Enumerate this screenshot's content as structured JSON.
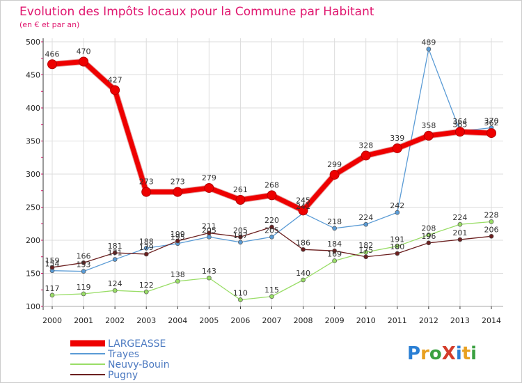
{
  "chart_data": {
    "type": "line",
    "title": "Evolution des Impôts locaux pour la Commune par Habitant",
    "subtitle": "(en € et par an)",
    "xlabel": "",
    "ylabel": "",
    "ylim": [
      100,
      500
    ],
    "yticks": [
      "100",
      "150",
      "200",
      "250",
      "300",
      "350",
      "400",
      "450",
      "500"
    ],
    "categories": [
      "2000",
      "2001",
      "2002",
      "2003",
      "2004",
      "2005",
      "2006",
      "2007",
      "2008",
      "2009",
      "2010",
      "2011",
      "2012",
      "2013",
      "2014"
    ],
    "series": [
      {
        "name": "LARGEASSE",
        "color": "#ee0000",
        "values": [
          466,
          470,
          427,
          273,
          273,
          279,
          261,
          268,
          245,
          299,
          328,
          339,
          358,
          364,
          362
        ]
      },
      {
        "name": "Trayes",
        "color": "#5a9bd5",
        "values": [
          154,
          153,
          171,
          188,
          195,
          205,
          197,
          205,
          241,
          218,
          224,
          242,
          489,
          365,
          370
        ]
      },
      {
        "name": "Neuvy-Bouin",
        "color": "#99dd66",
        "values": [
          117,
          119,
          124,
          122,
          138,
          143,
          110,
          115,
          140,
          169,
          182,
          191,
          208,
          224,
          228
        ]
      },
      {
        "name": "Pugny",
        "color": "#6b1f1f",
        "values": [
          159,
          166,
          181,
          179,
          199,
          211,
          205,
          220,
          186,
          184,
          175,
          180,
          196,
          201,
          206
        ]
      }
    ],
    "legend_position": "bottom-left",
    "grid": true
  },
  "watermark": "ProXiti"
}
